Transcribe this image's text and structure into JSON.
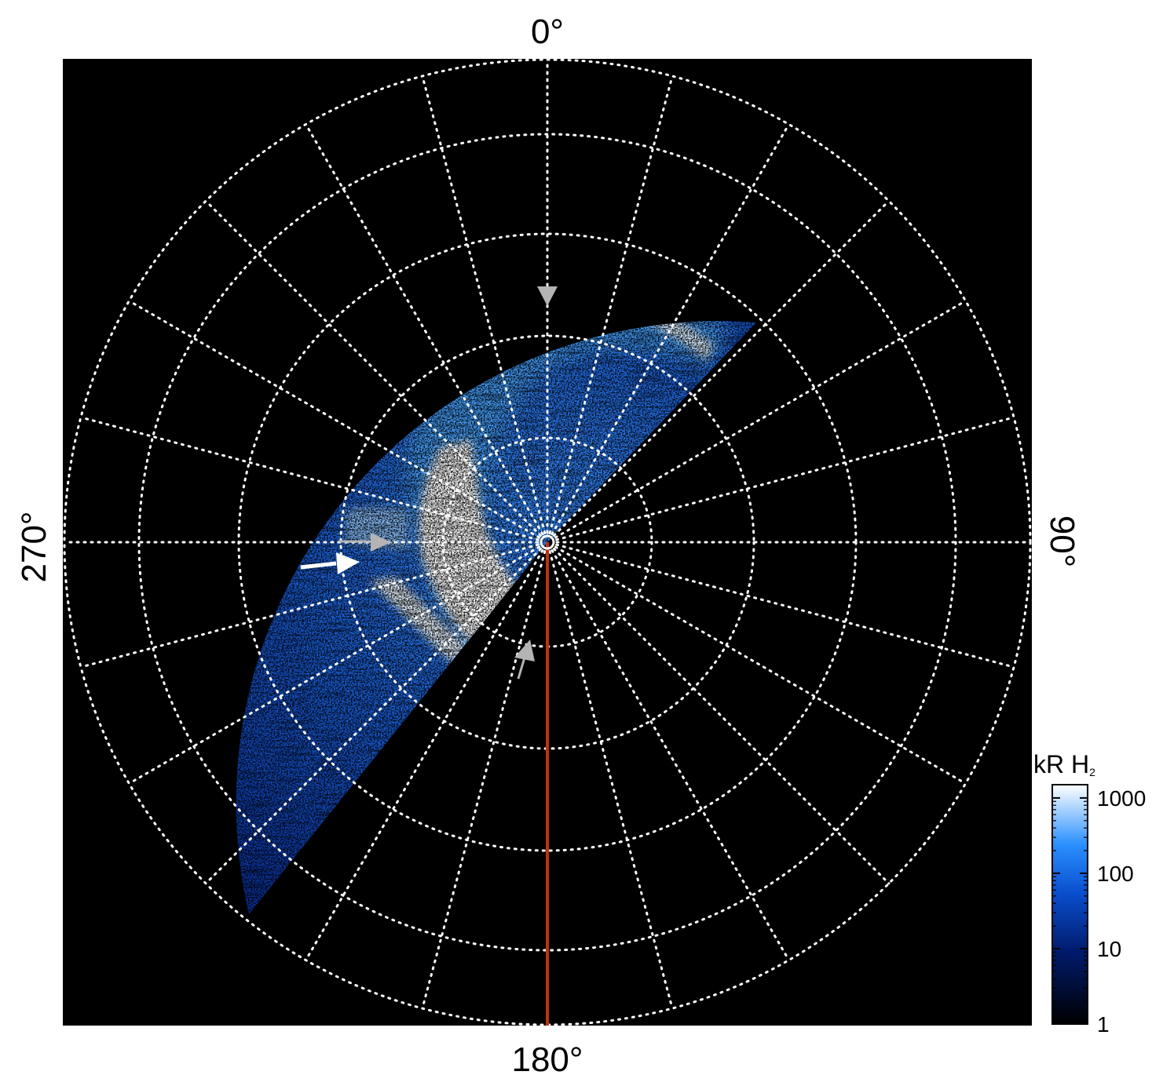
{
  "figure": {
    "labels": {
      "top": "0°",
      "bottom": "180°",
      "left": "270°",
      "right": "90°"
    },
    "colorbar": {
      "title_main": "kR H",
      "title_sub": "2",
      "scale": "log",
      "ticks": [
        "1000",
        "100",
        "10",
        "1"
      ],
      "tick_values": [
        1000,
        100,
        10,
        1
      ],
      "range": [
        1,
        1500
      ]
    },
    "grid": {
      "style": "dotted",
      "color": "#ffffff",
      "radial_lines_step_deg": 15,
      "rings": 5
    },
    "colors": {
      "background": "#000000",
      "emission_low": "#0a2a8c",
      "emission_mid": "#1f7fff",
      "emission_high": "#ffffff",
      "meridian_line": "#c03010",
      "arrow_white": "#ffffff",
      "arrow_gray": "#b4b4b4"
    },
    "markers": [
      {
        "name": "white-arrow",
        "color": "white"
      },
      {
        "name": "gray-arrow-top",
        "color": "gray"
      },
      {
        "name": "gray-arrow-left",
        "color": "gray"
      },
      {
        "name": "gray-arrow-bottom",
        "color": "gray"
      }
    ]
  }
}
